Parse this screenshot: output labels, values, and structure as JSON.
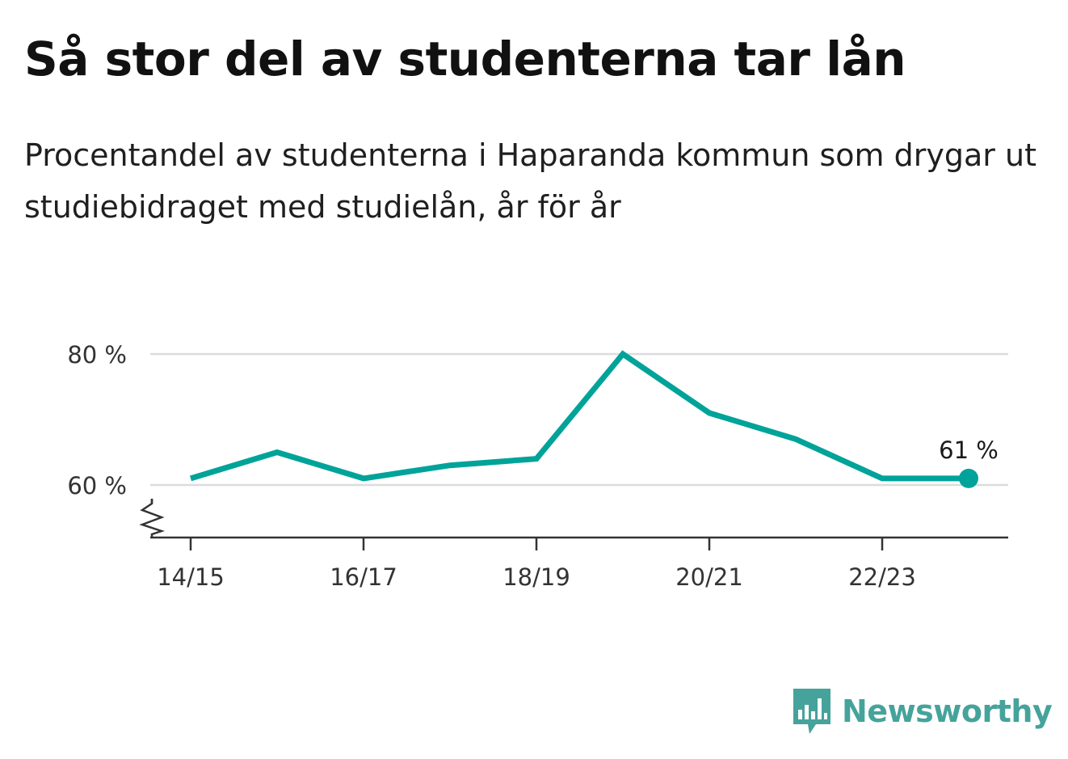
{
  "header": {
    "title": "Så stor del av studenterna tar lån",
    "subtitle": "Procentandel av studenterna i Haparanda kommun som drygar ut studiebidraget med studielån, år för år"
  },
  "brand": {
    "name": "Newsworthy",
    "color": "#45a39b",
    "logo_icon": "bar-chart-speech-bubble-icon"
  },
  "chart_data": {
    "type": "line",
    "x": [
      "14/15",
      "15/16",
      "16/17",
      "17/18",
      "18/19",
      "19/20",
      "20/21",
      "21/22",
      "22/23",
      "23/24"
    ],
    "xticks": [
      "14/15",
      "16/17",
      "18/19",
      "20/21",
      "22/23"
    ],
    "series": [
      {
        "values": [
          61,
          65,
          61,
          63,
          64,
          80,
          71,
          67,
          61,
          61
        ],
        "color": "#00a399"
      }
    ],
    "yticks": [
      {
        "value": 60,
        "label": "60 %"
      },
      {
        "value": 80,
        "label": "80 %"
      }
    ],
    "end_label": "61 %",
    "ylim": [
      52,
      82
    ],
    "y_axis_break": true,
    "grid": true,
    "title": "",
    "xlabel": "",
    "ylabel": ""
  }
}
